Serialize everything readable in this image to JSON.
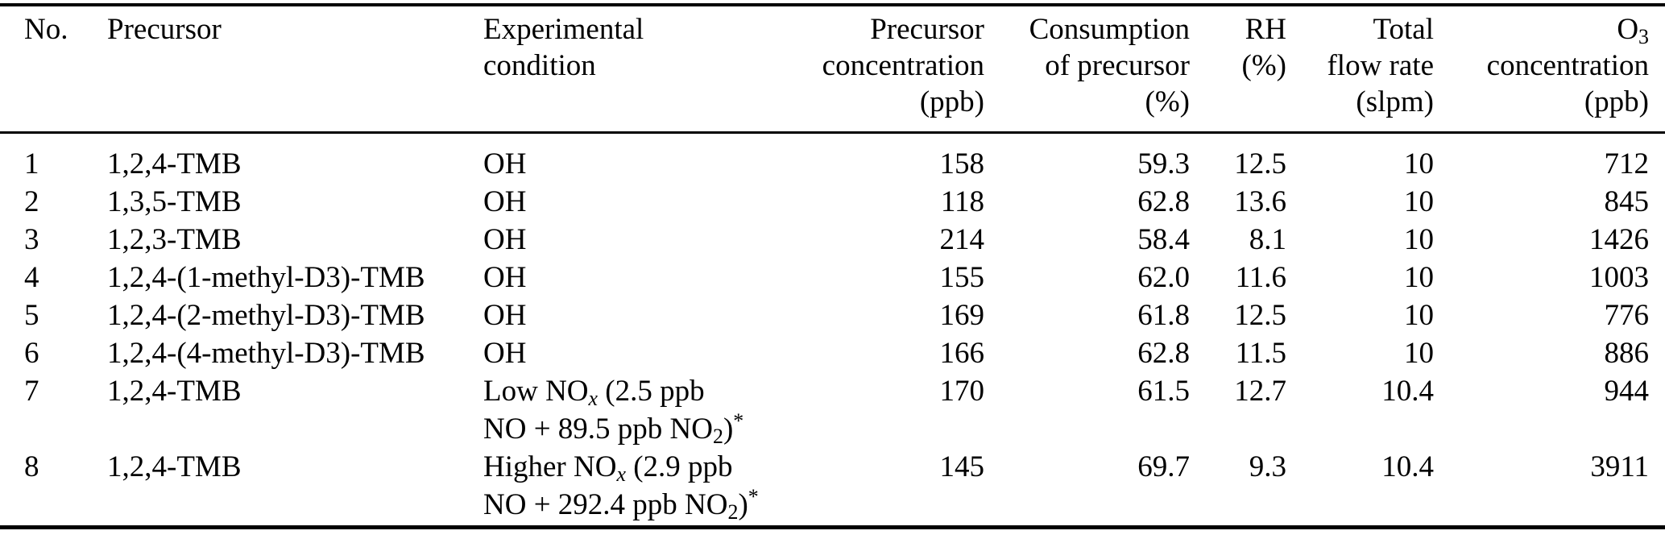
{
  "colors": {
    "text": "#000000",
    "background": "#ffffff",
    "rule": "#000000"
  },
  "table": {
    "headers": [
      {
        "align": "left",
        "lines": [
          [
            {
              "t": "No."
            }
          ]
        ]
      },
      {
        "align": "left",
        "lines": [
          [
            {
              "t": "Precursor"
            }
          ]
        ]
      },
      {
        "align": "left",
        "lines": [
          [
            {
              "t": "Experimental"
            }
          ],
          [
            {
              "t": "condition"
            }
          ]
        ]
      },
      {
        "align": "right",
        "lines": [
          [
            {
              "t": "Precursor"
            }
          ],
          [
            {
              "t": "concentration"
            }
          ],
          [
            {
              "t": "(ppb)"
            }
          ]
        ]
      },
      {
        "align": "right",
        "lines": [
          [
            {
              "t": "Consumption"
            }
          ],
          [
            {
              "t": "of precursor"
            }
          ],
          [
            {
              "t": "(%)"
            }
          ]
        ]
      },
      {
        "align": "right",
        "lines": [
          [
            {
              "t": "RH"
            }
          ],
          [
            {
              "t": "(%)"
            }
          ]
        ]
      },
      {
        "align": "right",
        "lines": [
          [
            {
              "t": "Total"
            }
          ],
          [
            {
              "t": "flow rate"
            }
          ],
          [
            {
              "t": "(slpm)"
            }
          ]
        ]
      },
      {
        "align": "right",
        "lines": [
          [
            {
              "t": "O"
            },
            {
              "t": "3",
              "s": "sub"
            }
          ],
          [
            {
              "t": "concentration"
            }
          ],
          [
            {
              "t": "(ppb)"
            }
          ]
        ]
      }
    ],
    "rows": [
      {
        "no": "1",
        "precursor": "1,2,4-TMB",
        "condition": [
          [
            {
              "t": "OH"
            }
          ]
        ],
        "precursor_concentration": "158",
        "consumption": "59.3",
        "rh": "12.5",
        "flow_rate": "10",
        "o3": "712"
      },
      {
        "no": "2",
        "precursor": "1,3,5-TMB",
        "condition": [
          [
            {
              "t": "OH"
            }
          ]
        ],
        "precursor_concentration": "118",
        "consumption": "62.8",
        "rh": "13.6",
        "flow_rate": "10",
        "o3": "845"
      },
      {
        "no": "3",
        "precursor": "1,2,3-TMB",
        "condition": [
          [
            {
              "t": "OH"
            }
          ]
        ],
        "precursor_concentration": "214",
        "consumption": "58.4",
        "rh": "8.1",
        "flow_rate": "10",
        "o3": "1426"
      },
      {
        "no": "4",
        "precursor": "1,2,4-(1-methyl-D3)-TMB",
        "condition": [
          [
            {
              "t": "OH"
            }
          ]
        ],
        "precursor_concentration": "155",
        "consumption": "62.0",
        "rh": "11.6",
        "flow_rate": "10",
        "o3": "1003"
      },
      {
        "no": "5",
        "precursor": "1,2,4-(2-methyl-D3)-TMB",
        "condition": [
          [
            {
              "t": "OH"
            }
          ]
        ],
        "precursor_concentration": "169",
        "consumption": "61.8",
        "rh": "12.5",
        "flow_rate": "10",
        "o3": "776"
      },
      {
        "no": "6",
        "precursor": "1,2,4-(4-methyl-D3)-TMB",
        "condition": [
          [
            {
              "t": "OH"
            }
          ]
        ],
        "precursor_concentration": "166",
        "consumption": "62.8",
        "rh": "11.5",
        "flow_rate": "10",
        "o3": "886"
      },
      {
        "no": "7",
        "precursor": "1,2,4-TMB",
        "condition": [
          [
            {
              "t": "Low NO"
            },
            {
              "t": "x",
              "s": "subi"
            },
            {
              "t": " (2.5 ppb"
            }
          ],
          [
            {
              "t": "NO + 89.5 ppb NO"
            },
            {
              "t": "2",
              "s": "sub"
            },
            {
              "t": ")"
            },
            {
              "t": "*",
              "s": "sup"
            }
          ]
        ],
        "precursor_concentration": "170",
        "consumption": "61.5",
        "rh": "12.7",
        "flow_rate": "10.4",
        "o3": "944"
      },
      {
        "no": "8",
        "precursor": "1,2,4-TMB",
        "condition": [
          [
            {
              "t": "Higher NO"
            },
            {
              "t": "x",
              "s": "subi"
            },
            {
              "t": " (2.9 ppb"
            }
          ],
          [
            {
              "t": "NO + 292.4 ppb NO"
            },
            {
              "t": "2",
              "s": "sub"
            },
            {
              "t": ")"
            },
            {
              "t": "*",
              "s": "sup"
            }
          ]
        ],
        "precursor_concentration": "145",
        "consumption": "69.7",
        "rh": "9.3",
        "flow_rate": "10.4",
        "o3": "3911"
      }
    ]
  }
}
